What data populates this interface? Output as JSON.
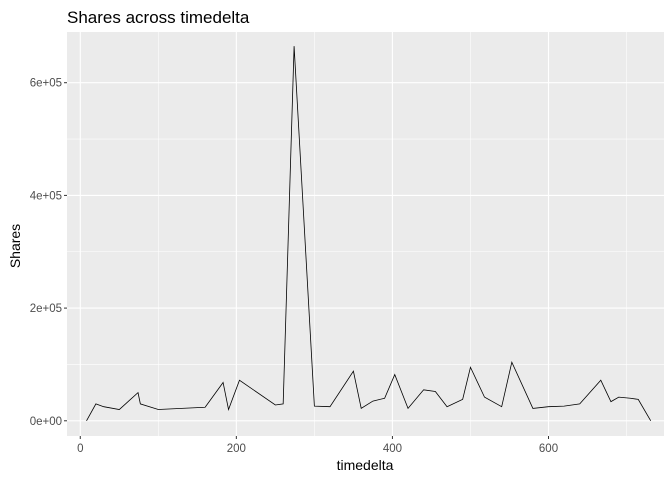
{
  "chart_data": {
    "type": "line",
    "title": "Shares across timedelta",
    "xlabel": "timedelta",
    "ylabel": "Shares",
    "xlim": [
      -17,
      748
    ],
    "ylim": [
      -27000,
      690000
    ],
    "x_ticks": [
      0,
      200,
      400,
      600
    ],
    "x_tick_labels": [
      "0",
      "200",
      "400",
      "600"
    ],
    "x_minor_ticks": [
      100,
      300,
      500,
      700
    ],
    "y_ticks": [
      0,
      200000,
      400000,
      600000
    ],
    "y_tick_labels": [
      "0e+00",
      "2e+05",
      "4e+05",
      "6e+05"
    ],
    "y_minor_ticks": [
      100000,
      300000,
      500000
    ],
    "grid": true,
    "background": "#ebebeb",
    "grid_color": "#ffffff",
    "line_color": "#000000",
    "series": [
      {
        "name": "",
        "x": [
          8,
          20,
          30,
          50,
          74,
          77,
          100,
          130,
          160,
          183,
          190,
          204,
          250,
          260,
          274,
          300,
          320,
          350,
          360,
          375,
          390,
          403,
          420,
          440,
          455,
          470,
          490,
          500,
          518,
          540,
          553,
          580,
          600,
          620,
          640,
          667,
          680,
          690,
          705,
          715,
          731
        ],
        "y": [
          0,
          30000,
          25000,
          20000,
          50000,
          30000,
          20000,
          22000,
          24000,
          68000,
          20000,
          72000,
          28000,
          30000,
          665000,
          26000,
          25000,
          88000,
          22000,
          35000,
          40000,
          82000,
          22000,
          55000,
          52000,
          25000,
          38000,
          95000,
          42000,
          25000,
          104000,
          22000,
          25000,
          26000,
          30000,
          72000,
          34000,
          42000,
          40000,
          38000,
          0
        ]
      }
    ]
  }
}
